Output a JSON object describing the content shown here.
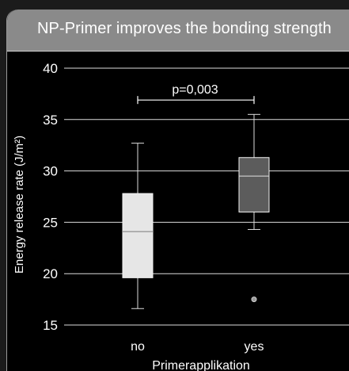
{
  "title": "NP-Primer improves the bonding strength",
  "chart_data": {
    "type": "box",
    "title": "NP-Primer improves the bonding strength",
    "xlabel": "Primerapplikation",
    "ylabel": "Energy release rate (J/m²)",
    "ylim": [
      15,
      40
    ],
    "yticks": [
      "15",
      "20",
      "25",
      "30",
      "35",
      "40"
    ],
    "grid": "horizontal",
    "categories": [
      "no",
      "yes"
    ],
    "boxes": [
      {
        "category": "no",
        "whisker_low": 16.6,
        "q1": 19.6,
        "median": 24.1,
        "q3": 27.8,
        "whisker_high": 32.7,
        "outliers": [],
        "color": "#e6e6e6"
      },
      {
        "category": "yes",
        "whisker_low": 24.3,
        "q1": 26.0,
        "median": 29.5,
        "q3": 31.3,
        "whisker_high": 35.5,
        "outliers": [
          17.5
        ],
        "color": "#5c5c5c"
      }
    ],
    "annotation": {
      "text": "p=0,003",
      "from": "no",
      "to": "yes",
      "y": 36.9
    }
  }
}
